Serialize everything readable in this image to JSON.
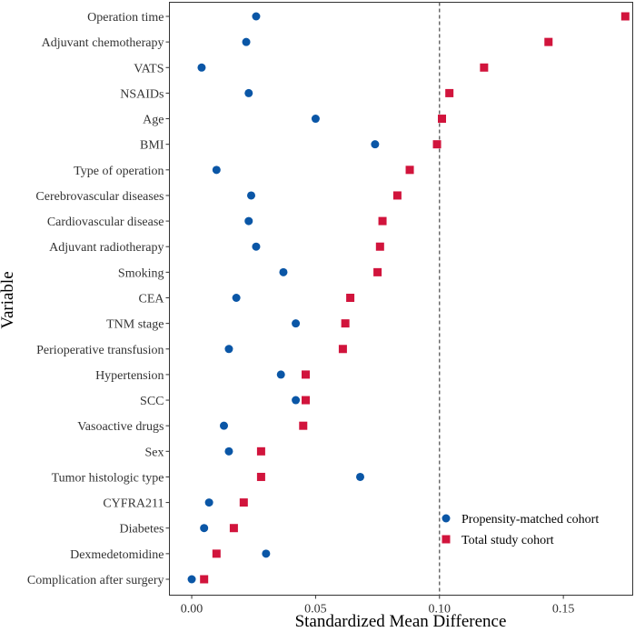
{
  "chart_data": {
    "type": "scatter",
    "title": "",
    "xlabel": "Standardized Mean Difference",
    "ylabel": "Variable",
    "xlim": [
      -0.009,
      0.178
    ],
    "xticks": [
      0.0,
      0.05,
      0.1,
      0.15
    ],
    "xtick_labels": [
      "0.00",
      "0.05",
      "0.10",
      "0.15"
    ],
    "reference_line": 0.1,
    "grid": false,
    "legend_position": "bottom-right",
    "categories": [
      "Operation time",
      "Adjuvant chemotherapy",
      "VATS",
      "NSAIDs",
      "Age",
      "BMI",
      "Type of operation",
      "Cerebrovascular diseases",
      "Cardiovascular disease",
      "Adjuvant radiotherapy",
      "Smoking",
      "CEA",
      "TNM stage",
      "Perioperative transfusion",
      "Hypertension",
      "SCC",
      "Vasoactive drugs",
      "Sex",
      "Tumor histologic type",
      "CYFRA211",
      "Diabetes",
      "Dexmedetomidine",
      "Complication after surgery"
    ],
    "series": [
      {
        "name": "Propensity-matched cohort",
        "marker": "circle",
        "color": "#0A56A6",
        "values": [
          0.026,
          0.022,
          0.004,
          0.023,
          0.05,
          0.074,
          0.01,
          0.024,
          0.023,
          0.026,
          0.037,
          0.018,
          0.042,
          0.015,
          0.036,
          0.042,
          0.013,
          0.015,
          0.068,
          0.007,
          0.005,
          0.03,
          0.0
        ]
      },
      {
        "name": "Total study cohort",
        "marker": "square",
        "color": "#D1143C",
        "values": [
          0.175,
          0.144,
          0.118,
          0.104,
          0.101,
          0.099,
          0.088,
          0.083,
          0.077,
          0.076,
          0.075,
          0.064,
          0.062,
          0.061,
          0.046,
          0.046,
          0.045,
          0.028,
          0.028,
          0.021,
          0.017,
          0.01,
          0.005
        ]
      }
    ]
  }
}
